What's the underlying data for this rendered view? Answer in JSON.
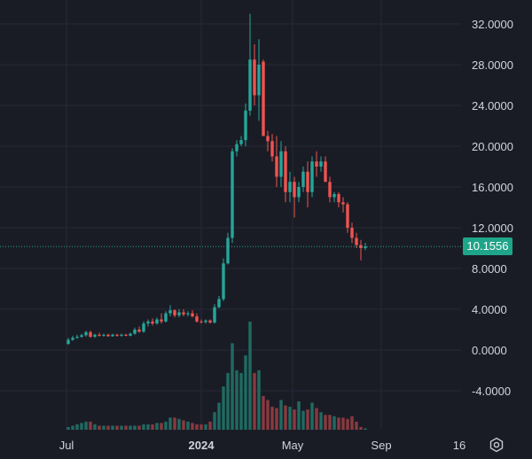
{
  "price_axis": {
    "ticks": [
      {
        "value": 32,
        "label": "32.0000"
      },
      {
        "value": 28,
        "label": "28.0000"
      },
      {
        "value": 24,
        "label": "24.0000"
      },
      {
        "value": 20,
        "label": "20.0000"
      },
      {
        "value": 16,
        "label": "16.0000"
      },
      {
        "value": 12,
        "label": "12.0000"
      },
      {
        "value": 8,
        "label": "8.0000"
      },
      {
        "value": 4,
        "label": "4.0000"
      },
      {
        "value": 0,
        "label": "0.0000"
      },
      {
        "value": -4,
        "label": "-4.0000"
      }
    ]
  },
  "time_axis": {
    "labels": [
      {
        "label": "Jul",
        "bold": false
      },
      {
        "label": "2024",
        "bold": true
      },
      {
        "label": "May",
        "bold": false
      },
      {
        "label": "Sep",
        "bold": false
      },
      {
        "label": "16",
        "bold": false
      }
    ]
  },
  "last_price": {
    "value": 10.1556,
    "label": "10.1556"
  },
  "colors": {
    "background": "#1a1c25",
    "grid": "#262936",
    "up": "#26a69a",
    "down": "#ef5350",
    "volume_up": "#1f6b62",
    "volume_down": "#8a3a3f",
    "axis_text": "#d1d4dc",
    "badge": "#1fa589"
  },
  "icons": {
    "settings": "gear-icon"
  },
  "chart_data": {
    "type": "candlestick",
    "x_labels": [
      "Jul",
      "2024",
      "May",
      "Sep",
      "16"
    ],
    "ylim": [
      -4,
      32
    ],
    "candles": [
      [
        0.6,
        1.2,
        0.5,
        1.0,
        "up"
      ],
      [
        1.0,
        1.4,
        0.9,
        1.2,
        "up"
      ],
      [
        1.2,
        1.5,
        1.1,
        1.3,
        "up"
      ],
      [
        1.3,
        1.6,
        1.2,
        1.45,
        "up"
      ],
      [
        1.45,
        1.9,
        1.3,
        1.75,
        "up"
      ],
      [
        1.75,
        1.9,
        1.2,
        1.3,
        "down"
      ],
      [
        1.3,
        1.6,
        1.2,
        1.5,
        "up"
      ],
      [
        1.5,
        1.7,
        1.3,
        1.4,
        "down"
      ],
      [
        1.4,
        1.6,
        1.3,
        1.5,
        "up"
      ],
      [
        1.5,
        1.6,
        1.3,
        1.35,
        "down"
      ],
      [
        1.35,
        1.6,
        1.3,
        1.5,
        "up"
      ],
      [
        1.5,
        1.6,
        1.3,
        1.4,
        "down"
      ],
      [
        1.4,
        1.6,
        1.3,
        1.5,
        "up"
      ],
      [
        1.5,
        1.6,
        1.35,
        1.4,
        "down"
      ],
      [
        1.4,
        1.7,
        1.35,
        1.6,
        "up"
      ],
      [
        1.6,
        2.2,
        1.5,
        2.0,
        "up"
      ],
      [
        2.0,
        2.3,
        1.7,
        1.8,
        "down"
      ],
      [
        1.8,
        2.8,
        1.7,
        2.6,
        "up"
      ],
      [
        2.6,
        3.0,
        2.3,
        2.8,
        "up"
      ],
      [
        2.8,
        3.1,
        2.4,
        2.6,
        "down"
      ],
      [
        2.6,
        3.2,
        2.5,
        3.0,
        "up"
      ],
      [
        3.0,
        3.6,
        2.6,
        2.8,
        "down"
      ],
      [
        2.8,
        3.8,
        2.7,
        3.6,
        "up"
      ],
      [
        3.6,
        4.4,
        3.3,
        3.9,
        "up"
      ],
      [
        3.9,
        4.0,
        3.2,
        3.4,
        "down"
      ],
      [
        3.4,
        4.0,
        3.2,
        3.7,
        "up"
      ],
      [
        3.7,
        4.0,
        3.3,
        3.5,
        "down"
      ],
      [
        3.5,
        3.8,
        3.3,
        3.6,
        "up"
      ],
      [
        3.6,
        3.9,
        3.2,
        3.3,
        "down"
      ],
      [
        3.3,
        3.6,
        2.7,
        2.8,
        "down"
      ],
      [
        2.8,
        3.0,
        2.6,
        2.75,
        "down"
      ],
      [
        2.75,
        3.0,
        2.6,
        2.9,
        "up"
      ],
      [
        2.9,
        3.0,
        2.6,
        2.7,
        "down"
      ],
      [
        2.7,
        4.5,
        2.6,
        4.2,
        "up"
      ],
      [
        4.2,
        5.3,
        4.1,
        5.0,
        "up"
      ],
      [
        5.0,
        9.0,
        4.8,
        8.5,
        "up"
      ],
      [
        8.5,
        11.5,
        8.4,
        11.0,
        "up"
      ],
      [
        11.0,
        19.8,
        10.5,
        19.5,
        "up"
      ],
      [
        19.5,
        20.6,
        19.0,
        20.2,
        "up"
      ],
      [
        20.2,
        21.0,
        20.0,
        20.6,
        "up"
      ],
      [
        20.6,
        24.2,
        20.0,
        23.5,
        "up"
      ],
      [
        23.5,
        33.0,
        23.0,
        28.5,
        "up"
      ],
      [
        28.5,
        30.0,
        24.0,
        25.0,
        "down"
      ],
      [
        25.0,
        30.5,
        22.5,
        28.0,
        "up"
      ],
      [
        28.3,
        28.5,
        21.0,
        21.0,
        "down"
      ],
      [
        21.0,
        21.5,
        19.5,
        20.5,
        "down"
      ],
      [
        20.5,
        21.2,
        18.5,
        19.0,
        "down"
      ],
      [
        19.0,
        21.0,
        16.0,
        17.0,
        "down"
      ],
      [
        17.0,
        20.5,
        16.0,
        19.5,
        "up"
      ],
      [
        19.5,
        20.0,
        14.5,
        15.5,
        "down"
      ],
      [
        15.5,
        17.5,
        14.5,
        16.5,
        "up"
      ],
      [
        16.5,
        17.0,
        13.0,
        15.0,
        "down"
      ],
      [
        15.0,
        16.5,
        14.5,
        16.0,
        "up"
      ],
      [
        16.0,
        18.0,
        15.5,
        17.5,
        "up"
      ],
      [
        17.5,
        18.5,
        14.0,
        15.5,
        "down"
      ],
      [
        15.5,
        19.0,
        15.0,
        18.5,
        "up"
      ],
      [
        18.5,
        19.5,
        17.0,
        18.0,
        "down"
      ],
      [
        18.0,
        19.0,
        17.5,
        18.5,
        "up"
      ],
      [
        18.5,
        19.0,
        16.5,
        16.5,
        "down"
      ],
      [
        16.5,
        17.0,
        14.5,
        15.0,
        "down"
      ],
      [
        15.0,
        15.5,
        14.5,
        15.3,
        "up"
      ],
      [
        15.3,
        15.5,
        14.0,
        14.5,
        "down"
      ],
      [
        14.5,
        15.0,
        13.5,
        14.3,
        "down"
      ],
      [
        14.3,
        14.5,
        11.5,
        12.0,
        "down"
      ],
      [
        12.0,
        12.5,
        10.5,
        11.0,
        "down"
      ],
      [
        11.0,
        11.5,
        10.0,
        10.3,
        "down"
      ],
      [
        10.3,
        10.8,
        8.8,
        10.0,
        "down"
      ],
      [
        10.0,
        10.5,
        9.8,
        10.15,
        "up"
      ]
    ],
    "volume": [
      2,
      3,
      4,
      5,
      6,
      6,
      4,
      3,
      3,
      3,
      3,
      3,
      3,
      3,
      3,
      3,
      3,
      4,
      4,
      4,
      5,
      5,
      6,
      9,
      9,
      8,
      7,
      6,
      5,
      4,
      4,
      4,
      6,
      13,
      20,
      32,
      42,
      64,
      44,
      42,
      55,
      80,
      42,
      44,
      25,
      22,
      17,
      16,
      22,
      18,
      17,
      15,
      21,
      14,
      15,
      20,
      16,
      13,
      11,
      11,
      10,
      9,
      9,
      8,
      10,
      6,
      2,
      1
    ]
  }
}
